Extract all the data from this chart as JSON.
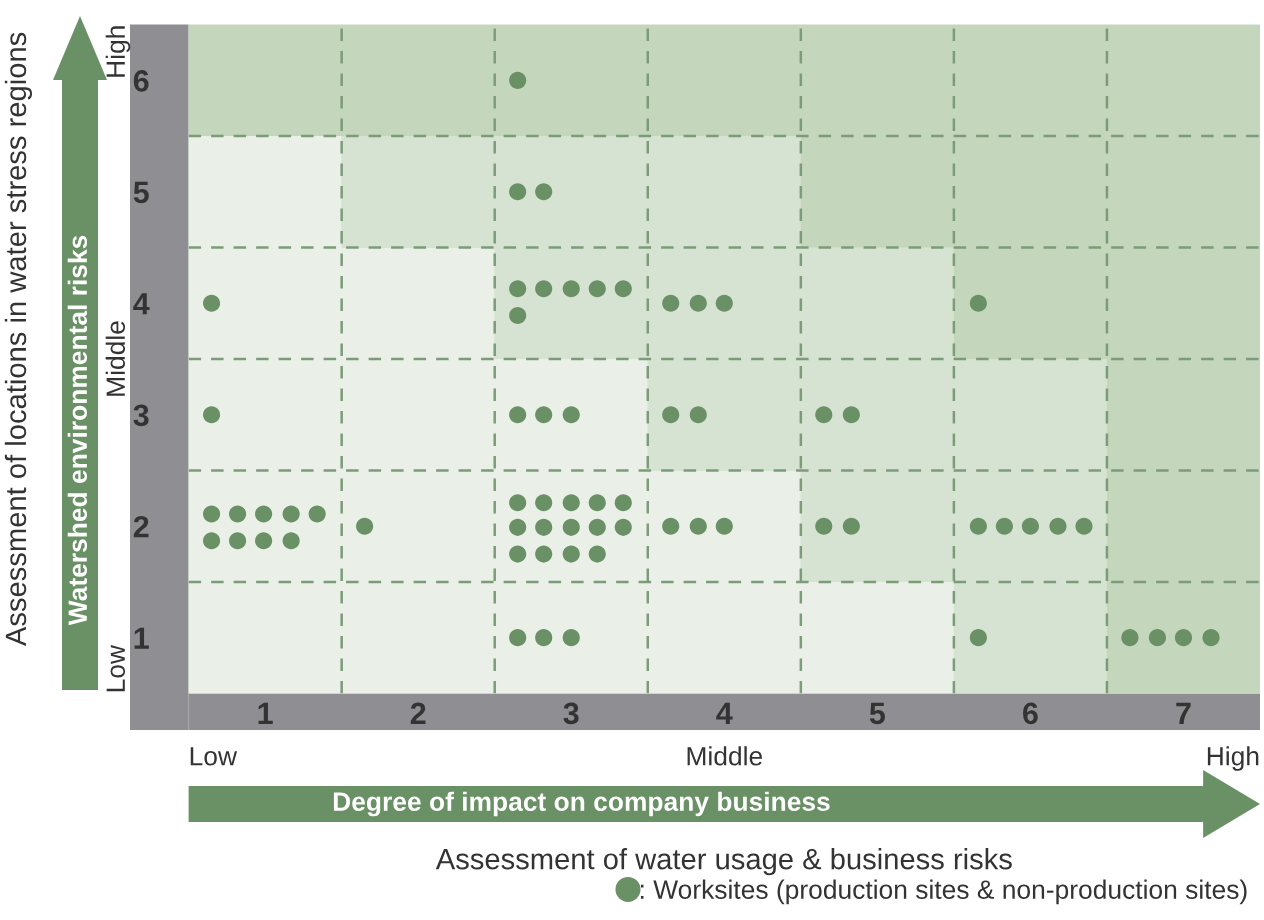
{
  "chart_data": {
    "type": "scatter",
    "xlabel": "Assessment of water usage & business risks",
    "ylabel": "Assessment of locations in water stress regions",
    "xlim": [
      0.5,
      7.5
    ],
    "xticks": [
      1,
      2,
      3,
      4,
      5,
      6,
      7
    ],
    "ylim": [
      0.5,
      6.5
    ],
    "yticks": [
      1,
      2,
      3,
      4,
      5,
      6
    ],
    "grid": true,
    "marker": "circle",
    "legend": "bottom right",
    "annotations": [
      "Degree of impact on company business",
      "Watershed environmental risks",
      "Low",
      "Middle",
      "High",
      "Low",
      "Middle",
      "High"
    ],
    "series": [
      {
        "name": ": Worksites (production sites & non-production sites)",
        "color": "#6a9166",
        "x": [
          2.65,
          2.65,
          2.82,
          0.65,
          2.65,
          2.82,
          3.0,
          3.17,
          3.34,
          2.65,
          3.65,
          3.83,
          4.0,
          5.66,
          0.65,
          2.65,
          2.82,
          3.0,
          3.65,
          3.83,
          4.65,
          4.83,
          0.65,
          0.82,
          0.99,
          1.17,
          1.34,
          0.65,
          0.82,
          0.99,
          1.17,
          1.65,
          2.65,
          2.82,
          3.0,
          3.17,
          3.34,
          2.65,
          2.82,
          3.0,
          3.17,
          3.34,
          2.65,
          2.82,
          3.0,
          3.17,
          3.65,
          3.83,
          4.0,
          4.65,
          4.83,
          5.66,
          5.83,
          6.0,
          6.18,
          6.35,
          2.65,
          2.82,
          3.0,
          5.66,
          6.65,
          6.83,
          7.0,
          7.18
        ],
        "values": [
          6.0,
          5.0,
          5.0,
          4.0,
          4.13,
          4.13,
          4.13,
          4.13,
          4.13,
          3.89,
          4.0,
          4.0,
          4.0,
          4.0,
          3.0,
          3.0,
          3.0,
          3.0,
          3.0,
          3.0,
          3.0,
          3.0,
          2.11,
          2.11,
          2.11,
          2.11,
          2.11,
          1.87,
          1.87,
          1.87,
          1.87,
          2.0,
          2.21,
          2.21,
          2.21,
          2.21,
          2.21,
          1.99,
          1.99,
          1.99,
          1.99,
          1.99,
          1.75,
          1.75,
          1.75,
          1.75,
          2.0,
          2.0,
          2.0,
          2.0,
          2.0,
          2.0,
          2.0,
          2.0,
          2.0,
          2.0,
          1.0,
          1.0,
          1.0,
          1.0,
          1.0,
          1.0,
          1.0,
          1.0
        ]
      }
    ]
  }
}
